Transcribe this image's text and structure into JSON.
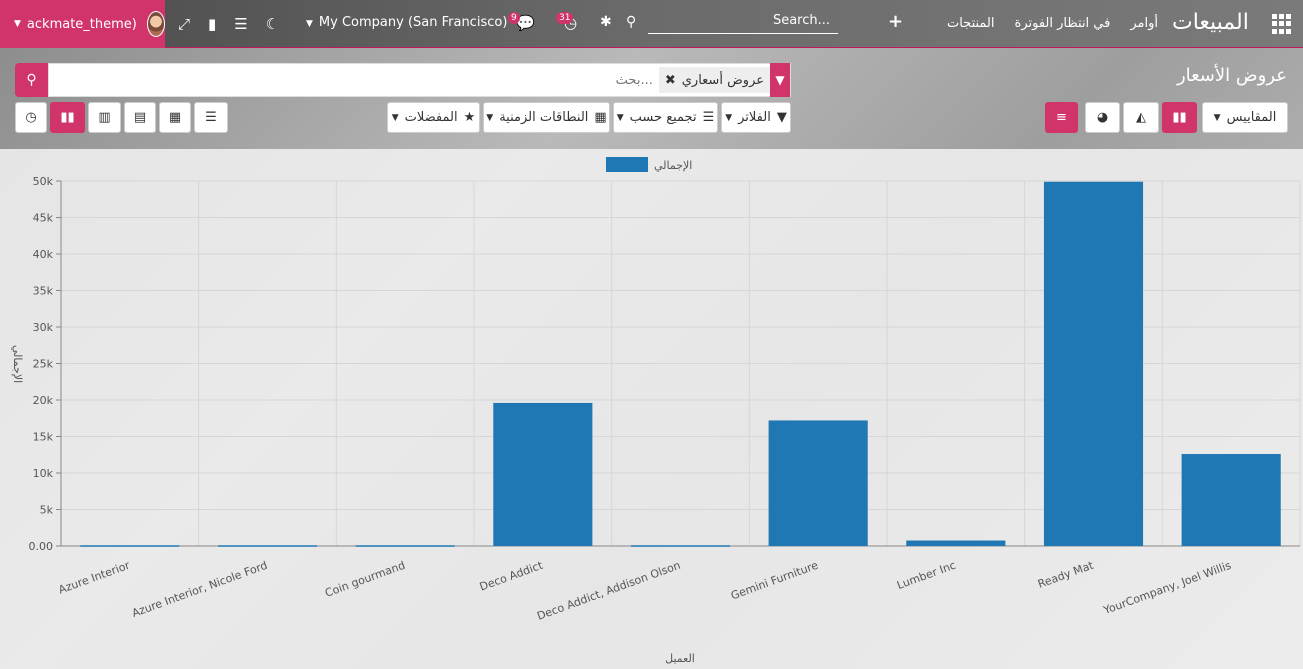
{
  "navbar": {
    "user_name": "ackmate_theme)",
    "company": "My Company (San Francisco)",
    "chat_badge": "9",
    "activity_badge": "31",
    "search_placeholder": "Search...",
    "menu": [
      "أوامر",
      "في انتظار الفوترة",
      "المنتجات"
    ],
    "app_title": "المبيعات",
    "icons": [
      "expand-icon",
      "bookmark-icon",
      "list-icon",
      "moon-icon",
      "chat-icon",
      "clock-icon",
      "bug-icon",
      "search-icon",
      "plus-icon",
      "apps-icon"
    ]
  },
  "control": {
    "breadcrumb": "عروض الأسعار",
    "facet_label": "عروض أسعاري",
    "search_placeholder": "بحث...",
    "filters_label": "الفلاتر",
    "groupby_label": "تجميع حسب",
    "timeranges_label": "النطاقات الزمنية",
    "favorites_label": "المفضلات",
    "measures_label": "المقاييس"
  },
  "chart_data": {
    "type": "bar",
    "categories": [
      "Azure Interior",
      "Azure Interior, Nicole Ford",
      "Coin gourmand",
      "Deco Addict",
      "Deco Addict, Addison Olson",
      "Gemini Furniture",
      "Lumber Inc",
      "Ready Mat",
      "YourCompany, Joel Willis"
    ],
    "series": [
      {
        "name": "الإجمالي",
        "values": [
          100,
          100,
          100,
          19600,
          100,
          17200,
          750,
          49900,
          12600
        ]
      }
    ],
    "xlabel": "العميل",
    "ylabel": "الإجمالي",
    "ylim": [
      0,
      50000
    ],
    "yticks": [
      "0.00",
      "5k",
      "10k",
      "15k",
      "20k",
      "25k",
      "30k",
      "35k",
      "40k",
      "45k",
      "50k"
    ],
    "grid": true,
    "legend": "top-center",
    "color": "#1f77b4"
  }
}
